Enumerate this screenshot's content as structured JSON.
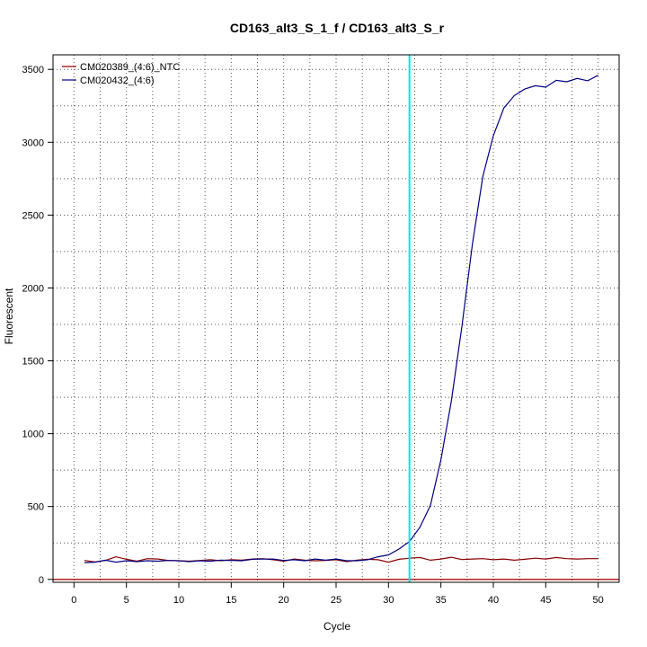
{
  "chart_data": {
    "type": "line",
    "title": "CD163_alt3_S_1_f / CD163_alt3_S_r",
    "xlabel": "Cycle",
    "ylabel": "Fluorescent",
    "xlim": [
      -2,
      52
    ],
    "ylim": [
      -20,
      3600
    ],
    "x_ticks": [
      0,
      5,
      10,
      15,
      20,
      25,
      30,
      35,
      40,
      45,
      50
    ],
    "y_ticks": [
      0,
      500,
      1000,
      1500,
      2000,
      2500,
      3000,
      3500
    ],
    "x_tick_labels": [
      "0",
      "5",
      "10",
      "15",
      "20",
      "25",
      "30",
      "35",
      "40",
      "45",
      "50"
    ],
    "y_tick_labels": [
      "0",
      "500",
      "1000",
      "1500",
      "2000",
      "2500",
      "3000",
      "3500"
    ],
    "grid": true,
    "legend_position": "top-left",
    "threshold_cycle": 32,
    "threshold_color": "#00e5ee",
    "baseline_value": 0,
    "baseline_color": "#b22222",
    "series": [
      {
        "name": "CM020389_(4:6)_NTC",
        "color": "#8b0000",
        "x": [
          1,
          2,
          3,
          4,
          5,
          6,
          7,
          8,
          9,
          10,
          11,
          12,
          13,
          14,
          15,
          16,
          17,
          18,
          19,
          20,
          21,
          22,
          23,
          24,
          25,
          26,
          27,
          28,
          29,
          30,
          31,
          32,
          33,
          34,
          35,
          36,
          37,
          38,
          39,
          40,
          41,
          42,
          43,
          44,
          45,
          46,
          47,
          48,
          49,
          50
        ],
        "values": [
          130,
          120,
          130,
          155,
          138,
          125,
          142,
          140,
          130,
          128,
          125,
          130,
          135,
          128,
          135,
          132,
          140,
          142,
          135,
          125,
          140,
          132,
          128,
          130,
          135,
          122,
          132,
          138,
          135,
          118,
          138,
          145,
          150,
          132,
          140,
          152,
          136,
          140,
          142,
          135,
          140,
          132,
          138,
          145,
          140,
          150,
          142,
          140,
          142,
          142
        ]
      },
      {
        "name": "CM020432_(4:6)",
        "color": "#000080",
        "x": [
          1,
          2,
          3,
          4,
          5,
          6,
          7,
          8,
          9,
          10,
          11,
          12,
          13,
          14,
          15,
          16,
          17,
          18,
          19,
          20,
          21,
          22,
          23,
          24,
          25,
          26,
          27,
          28,
          29,
          30,
          31,
          32,
          33,
          34,
          35,
          36,
          37,
          38,
          39,
          40,
          41,
          42,
          43,
          44,
          45,
          46,
          47,
          48,
          49,
          50
        ],
        "values": [
          115,
          118,
          132,
          118,
          128,
          122,
          128,
          125,
          130,
          128,
          122,
          128,
          125,
          132,
          130,
          128,
          138,
          140,
          140,
          130,
          135,
          128,
          140,
          132,
          140,
          128,
          128,
          135,
          155,
          168,
          208,
          260,
          358,
          508,
          822,
          1225,
          1735,
          2300,
          2765,
          3045,
          3235,
          3320,
          3365,
          3388,
          3378,
          3425,
          3415,
          3438,
          3422,
          3460
        ]
      }
    ]
  }
}
